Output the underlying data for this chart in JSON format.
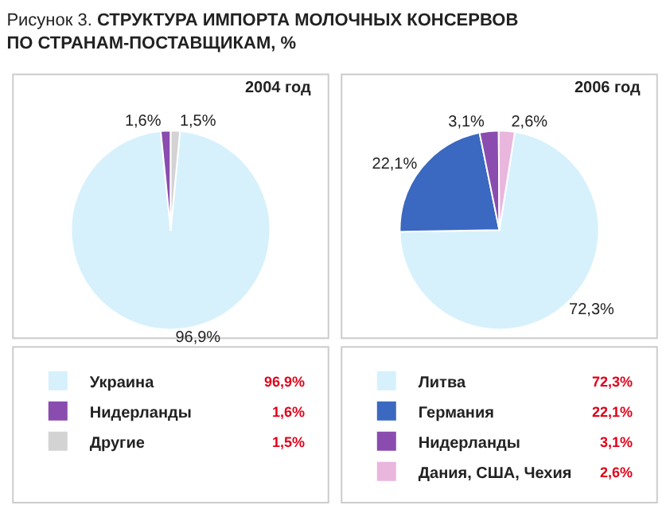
{
  "chart_data": [
    {
      "type": "pie",
      "title": "Рисунок 3. СТРУКТУРА ИМПОРТА МОЛОЧНЫХ КОНСЕРВОВ ПО СТРАНАМ-ПОСТАВЩИКАМ, %",
      "subtitle": "2004 год",
      "categories": [
        "Украина",
        "Нидерланды",
        "Другие"
      ],
      "values": [
        96.9,
        1.6,
        1.5
      ],
      "value_labels": [
        "96,9%",
        "1,6%",
        "1,5%"
      ],
      "colors": [
        "#d6f1fc",
        "#8a4caf",
        "#d3d3d3"
      ],
      "legend": "bottom"
    },
    {
      "type": "pie",
      "title": "2006 год",
      "categories": [
        "Литва",
        "Германия",
        "Нидерланды",
        "Дания, США, Чехия"
      ],
      "values": [
        72.3,
        22.1,
        3.1,
        2.6
      ],
      "value_labels": [
        "72,3%",
        "22,1%",
        "3,1%",
        "2,6%"
      ],
      "colors": [
        "#d6f1fc",
        "#3b68c0",
        "#8a4caf",
        "#e9b6de"
      ],
      "legend": "bottom"
    }
  ]
}
